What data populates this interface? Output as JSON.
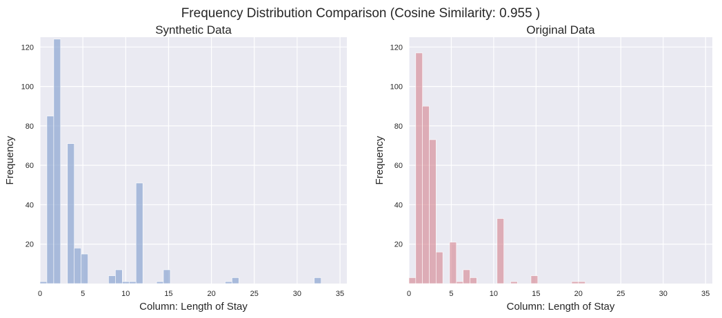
{
  "figure": {
    "title": "Frequency Distribution Comparison (Cosine Similarity: 0.955 )"
  },
  "chart_data": [
    {
      "type": "bar",
      "title": "Synthetic Data",
      "xlabel": "Column: Length of Stay",
      "ylabel": "Frequency",
      "xlim": [
        0,
        35.8
      ],
      "ylim": [
        0,
        125
      ],
      "xticks": [
        0,
        5,
        10,
        15,
        20,
        25,
        30,
        35
      ],
      "yticks": [
        20,
        40,
        60,
        80,
        100,
        120
      ],
      "bin_width": 0.8,
      "color": "#8fa7d1",
      "bar_opacity": 0.72,
      "grid": true,
      "bins": [
        {
          "x": 0.0,
          "value": 1
        },
        {
          "x": 0.8,
          "value": 85
        },
        {
          "x": 1.6,
          "value": 124
        },
        {
          "x": 3.2,
          "value": 71
        },
        {
          "x": 4.0,
          "value": 18
        },
        {
          "x": 4.8,
          "value": 15
        },
        {
          "x": 8.0,
          "value": 4
        },
        {
          "x": 8.8,
          "value": 7
        },
        {
          "x": 9.6,
          "value": 1
        },
        {
          "x": 10.4,
          "value": 1
        },
        {
          "x": 11.2,
          "value": 51
        },
        {
          "x": 13.6,
          "value": 1
        },
        {
          "x": 14.4,
          "value": 7
        },
        {
          "x": 21.6,
          "value": 1
        },
        {
          "x": 22.4,
          "value": 3
        },
        {
          "x": 32.0,
          "value": 3
        }
      ]
    },
    {
      "type": "bar",
      "title": "Original Data",
      "xlabel": "Column: Length of Stay",
      "ylabel": "Frequency",
      "xlim": [
        0,
        35.8
      ],
      "ylim": [
        0,
        125
      ],
      "xticks": [
        0,
        5,
        10,
        15,
        20,
        25,
        30,
        35
      ],
      "yticks": [
        20,
        40,
        60,
        80,
        100,
        120
      ],
      "bin_width": 0.8,
      "color": "#d78f99",
      "bar_opacity": 0.68,
      "grid": true,
      "bins": [
        {
          "x": 0.0,
          "value": 3
        },
        {
          "x": 0.8,
          "value": 117
        },
        {
          "x": 1.6,
          "value": 90
        },
        {
          "x": 2.4,
          "value": 73
        },
        {
          "x": 3.2,
          "value": 16
        },
        {
          "x": 4.8,
          "value": 21
        },
        {
          "x": 5.6,
          "value": 1
        },
        {
          "x": 6.4,
          "value": 7
        },
        {
          "x": 7.2,
          "value": 3
        },
        {
          "x": 10.4,
          "value": 33
        },
        {
          "x": 12.0,
          "value": 1
        },
        {
          "x": 14.4,
          "value": 4
        },
        {
          "x": 19.2,
          "value": 1
        },
        {
          "x": 20.0,
          "value": 1
        }
      ]
    }
  ]
}
